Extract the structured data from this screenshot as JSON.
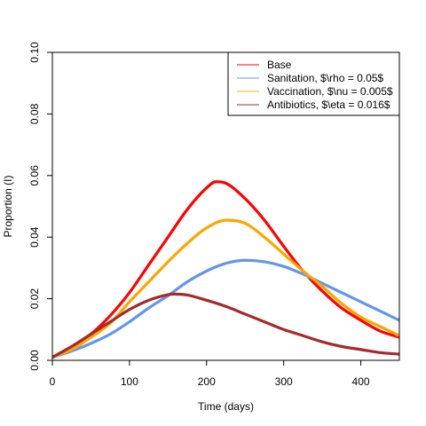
{
  "chart_data": {
    "type": "line",
    "title": "",
    "xlabel": "Time (days)",
    "ylabel": "Proportion (I)",
    "xlim": [
      0,
      450
    ],
    "ylim": [
      0,
      0.1
    ],
    "x_ticks": [
      0,
      100,
      200,
      300,
      400
    ],
    "y_ticks": [
      0.0,
      0.02,
      0.04,
      0.06,
      0.08,
      0.1
    ],
    "x_tick_labels": [
      "0",
      "100",
      "200",
      "300",
      "400"
    ],
    "y_tick_labels": [
      "0.00",
      "0.02",
      "0.04",
      "0.06",
      "0.08",
      "0.10"
    ],
    "grid": false,
    "legend_position": "top-right",
    "legend": [
      {
        "name": "Base",
        "color": "#ff0000"
      },
      {
        "name": "Sanitation, $\\rho = 0.05$",
        "color": "#6495ed"
      },
      {
        "name": "Vaccination, $\\nu = 0.005$",
        "color": "#ffa500"
      },
      {
        "name": "Antibiotics, $\\eta = 0.016$",
        "color": "#a52a2a"
      }
    ],
    "series": [
      {
        "name": "Base",
        "color": "#ff0000",
        "x": [
          0,
          25,
          50,
          75,
          100,
          125,
          150,
          175,
          200,
          212,
          225,
          250,
          275,
          300,
          325,
          350,
          375,
          400,
          425,
          450
        ],
        "values": [
          0.001,
          0.004,
          0.0085,
          0.0145,
          0.022,
          0.031,
          0.04,
          0.049,
          0.056,
          0.058,
          0.0575,
          0.0525,
          0.0455,
          0.037,
          0.029,
          0.0225,
          0.017,
          0.013,
          0.0095,
          0.0075
        ]
      },
      {
        "name": "Sanitation, $\\rho = 0.05$",
        "color": "#6495ed",
        "x": [
          0,
          25,
          50,
          75,
          100,
          125,
          150,
          175,
          200,
          225,
          250,
          275,
          300,
          325,
          350,
          375,
          400,
          425,
          450
        ],
        "values": [
          0.001,
          0.003,
          0.0055,
          0.0085,
          0.0125,
          0.017,
          0.021,
          0.0255,
          0.029,
          0.0315,
          0.0325,
          0.032,
          0.0305,
          0.028,
          0.025,
          0.022,
          0.019,
          0.016,
          0.013
        ]
      },
      {
        "name": "Vaccination, $\\nu = 0.005$",
        "color": "#ffa500",
        "x": [
          0,
          25,
          50,
          75,
          100,
          125,
          150,
          175,
          200,
          225,
          250,
          275,
          300,
          325,
          350,
          375,
          400,
          425,
          450
        ],
        "values": [
          0.001,
          0.0035,
          0.0075,
          0.012,
          0.019,
          0.0255,
          0.032,
          0.038,
          0.043,
          0.0455,
          0.0445,
          0.04,
          0.0345,
          0.029,
          0.024,
          0.0185,
          0.014,
          0.011,
          0.008
        ]
      },
      {
        "name": "Antibiotics, $\\eta = 0.016$",
        "color": "#a52a2a",
        "x": [
          0,
          25,
          50,
          75,
          100,
          125,
          150,
          158,
          175,
          200,
          225,
          250,
          275,
          300,
          325,
          350,
          375,
          400,
          425,
          450
        ],
        "values": [
          0.001,
          0.0045,
          0.0085,
          0.0125,
          0.0165,
          0.0195,
          0.0213,
          0.0215,
          0.0212,
          0.0195,
          0.0175,
          0.015,
          0.0125,
          0.01,
          0.008,
          0.006,
          0.0045,
          0.0035,
          0.0025,
          0.002
        ]
      }
    ]
  }
}
